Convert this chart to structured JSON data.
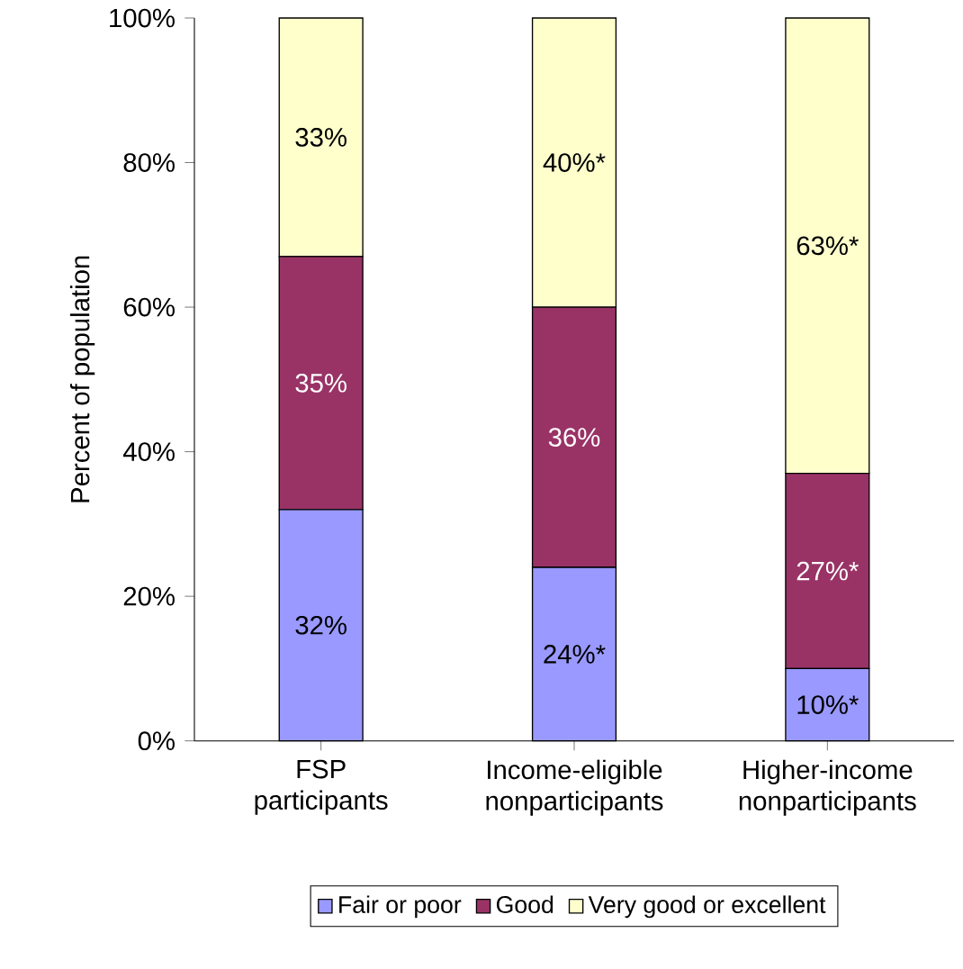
{
  "chart_data": {
    "type": "bar",
    "stacked": true,
    "ylabel": "Percent of population",
    "categories": [
      "FSP participants",
      "Income-eligible nonparticipants",
      "Higher-income nonparticipants"
    ],
    "series": [
      {
        "name": "Fair or poor",
        "color": "#9999ff",
        "values": [
          32,
          24,
          10
        ],
        "value_labels": [
          "32%",
          "24%*",
          "10%*"
        ]
      },
      {
        "name": "Good",
        "color": "#993366",
        "values": [
          35,
          36,
          27
        ],
        "value_labels": [
          "35%",
          "36%",
          "27%*"
        ]
      },
      {
        "name": "Very good or excellent",
        "color": "#ffffcc",
        "values": [
          33,
          40,
          63
        ],
        "value_labels": [
          "33%",
          "40%*",
          "63%*"
        ]
      }
    ],
    "ylim": [
      0,
      100
    ],
    "yticks": [
      {
        "value": 0,
        "label": "0%"
      },
      {
        "value": 20,
        "label": "20%"
      },
      {
        "value": 40,
        "label": "40%"
      },
      {
        "value": 60,
        "label": "60%"
      },
      {
        "value": 80,
        "label": "80%"
      },
      {
        "value": 100,
        "label": "100%"
      }
    ],
    "legend": "bottom"
  }
}
